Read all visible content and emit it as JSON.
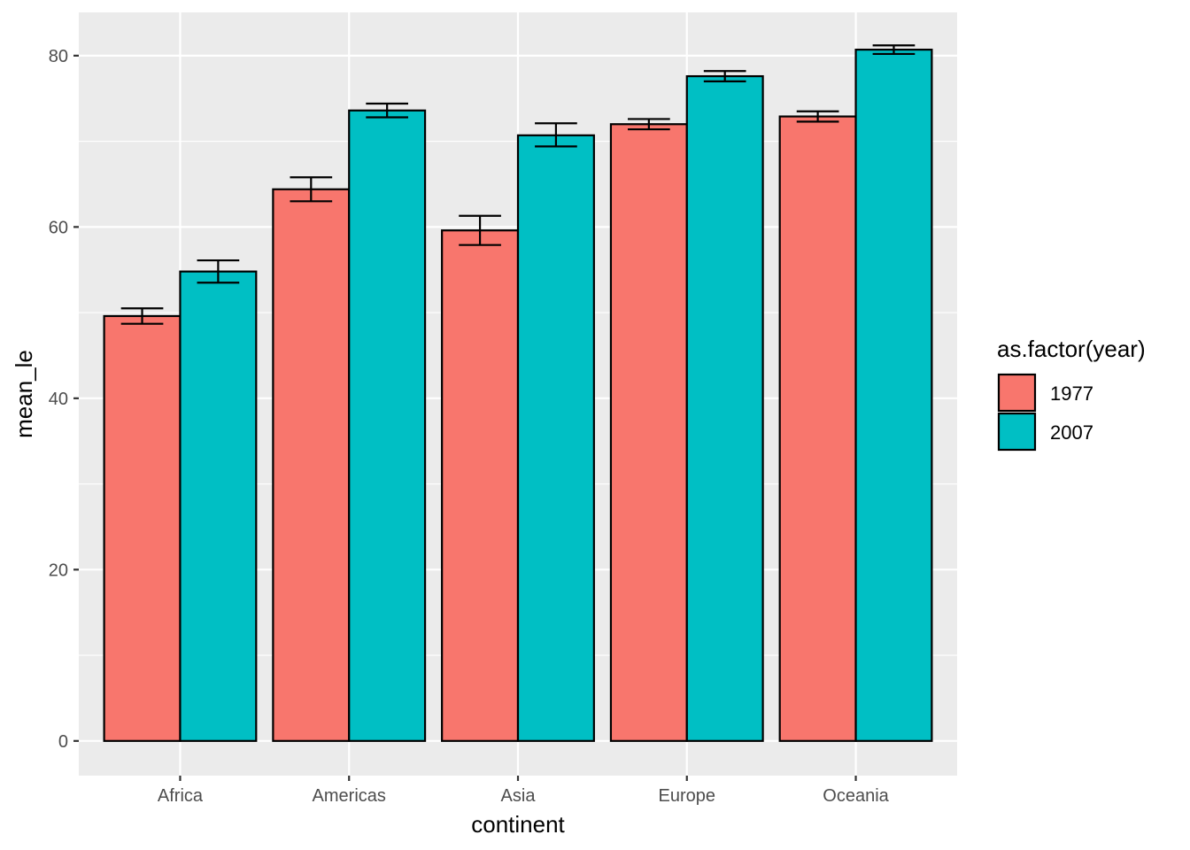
{
  "chart_data": {
    "type": "bar",
    "title": "",
    "xlabel": "continent",
    "ylabel": "mean_le",
    "categories": [
      "Africa",
      "Americas",
      "Asia",
      "Europe",
      "Oceania"
    ],
    "ylim": [
      -4.05,
      85.05
    ],
    "yticks": [
      0,
      20,
      40,
      60,
      80
    ],
    "grid": true,
    "legend": {
      "title": "as.factor(year)",
      "position": "right"
    },
    "series": [
      {
        "name": "1977",
        "color": "#F8766D",
        "values": [
          49.6,
          64.4,
          59.6,
          72.0,
          72.9
        ],
        "error_low": [
          48.7,
          63.0,
          57.9,
          71.4,
          72.3
        ],
        "error_high": [
          50.5,
          65.8,
          61.3,
          72.6,
          73.5
        ]
      },
      {
        "name": "2007",
        "color": "#00BFC4",
        "values": [
          54.8,
          73.6,
          70.7,
          77.6,
          80.7
        ],
        "error_low": [
          53.5,
          72.8,
          69.4,
          77.0,
          80.2
        ],
        "error_high": [
          56.1,
          74.4,
          72.1,
          78.2,
          81.2
        ]
      }
    ]
  }
}
